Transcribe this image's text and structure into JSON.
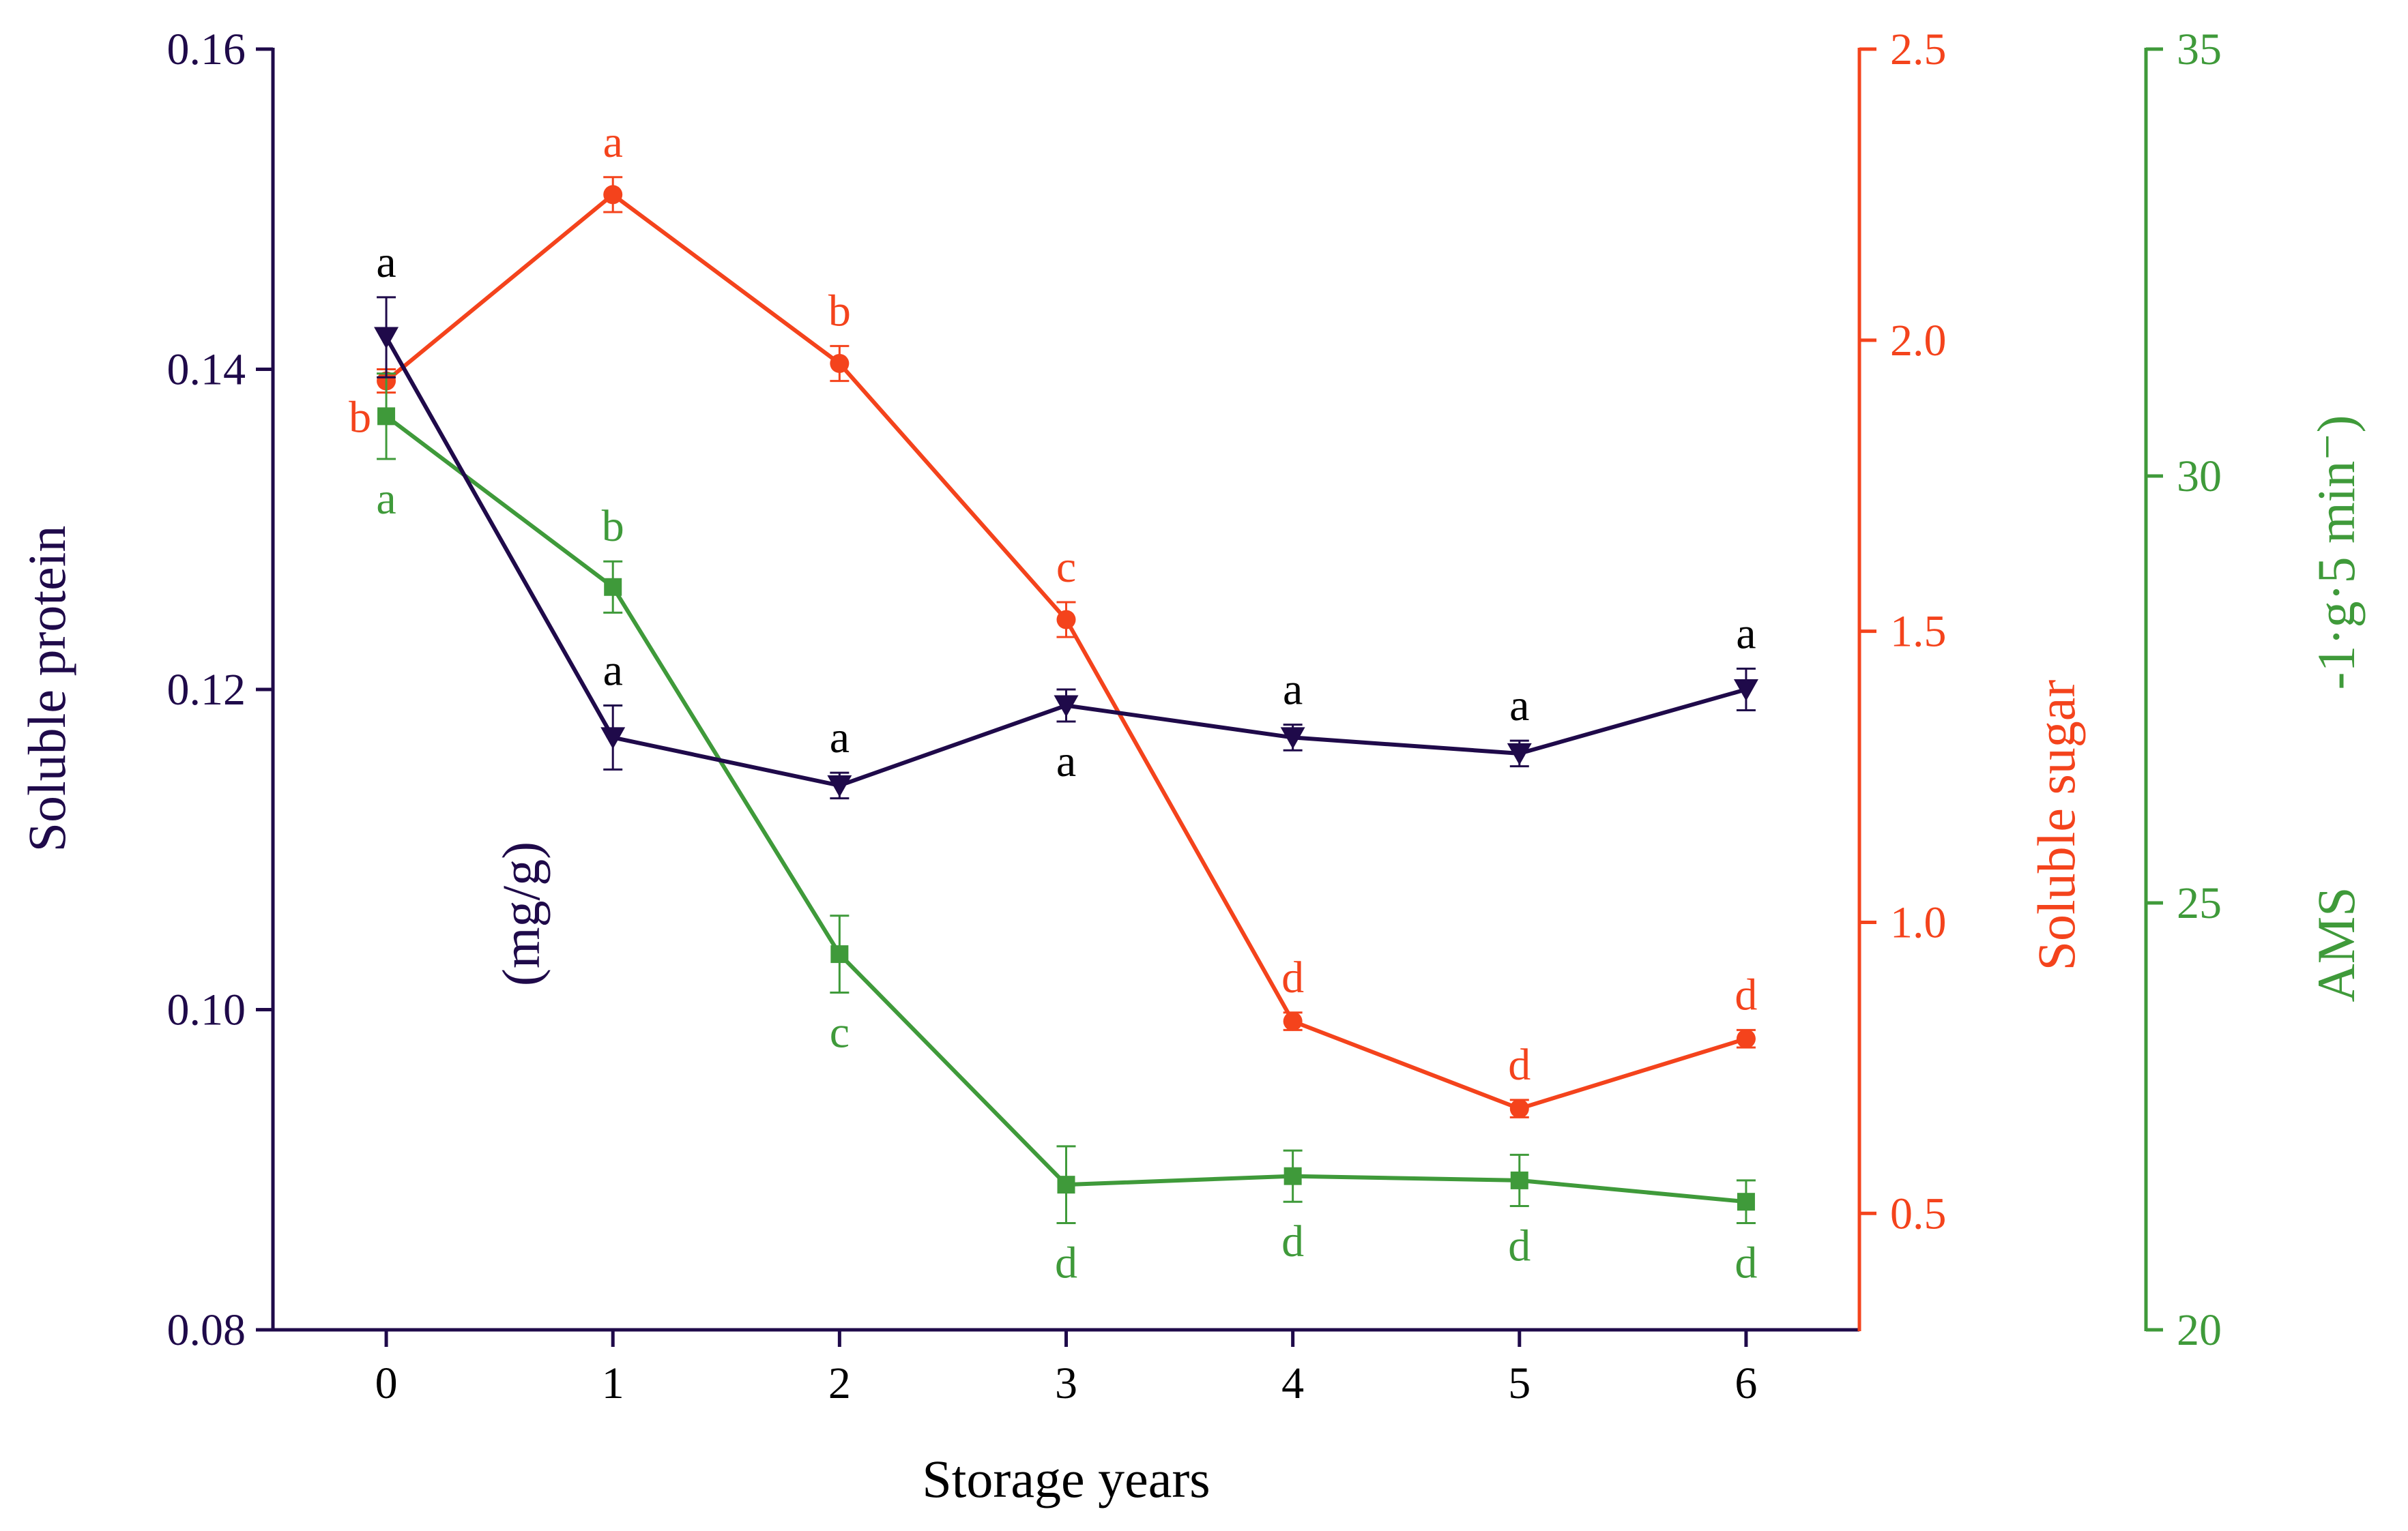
{
  "chart_data": {
    "type": "line",
    "title": "",
    "xlabel": "Storage years",
    "x": [
      0,
      1,
      2,
      3,
      4,
      5,
      6
    ],
    "xticks": [
      "0",
      "1",
      "2",
      "3",
      "4",
      "5",
      "6"
    ],
    "xlim": [
      -0.5,
      6.5
    ],
    "colors": {
      "protein": "#1f0a4a",
      "sugar": "#f4431c",
      "ams": "#3f9a3a"
    },
    "axes": {
      "left": {
        "ylabel": "Soluble protein",
        "unit_note": "(mg/g)",
        "ylim": [
          0.08,
          0.16
        ],
        "ticks": [
          "0.08",
          "0.10",
          "0.12",
          "0.14",
          "0.16"
        ]
      },
      "right1": {
        "ylabel": "Soluble sugar",
        "ylim": [
          0.3,
          2.5
        ],
        "ticks": [
          "0.5",
          "1.0",
          "1.5",
          "2.0",
          "2.5"
        ]
      },
      "right2": {
        "ylabel_main": "AMS",
        "ylabel_unit": "-1·g·5 min⁻)",
        "ylim": [
          20,
          35
        ],
        "ticks": [
          "20",
          "25",
          "30",
          "35"
        ]
      }
    },
    "series": [
      {
        "name": "Soluble protein",
        "axis": "left",
        "marker": "triangle-down",
        "color": "#1f0a4a",
        "values": [
          0.142,
          0.117,
          0.114,
          0.119,
          0.117,
          0.116,
          0.12
        ],
        "errors": [
          0.0025,
          0.002,
          0.0008,
          0.001,
          0.0008,
          0.0008,
          0.0013
        ],
        "letters": [
          "a",
          "a",
          "a",
          "a",
          "a",
          "a",
          "a"
        ],
        "letter_pos": [
          "above",
          "above",
          "above",
          "below",
          "above",
          "above",
          "above"
        ]
      },
      {
        "name": "Soluble sugar",
        "axis": "right1",
        "marker": "circle",
        "color": "#f4431c",
        "values": [
          1.93,
          2.25,
          1.96,
          1.52,
          0.83,
          0.68,
          0.8
        ],
        "errors": [
          0.02,
          0.03,
          0.03,
          0.03,
          0.015,
          0.015,
          0.015
        ],
        "letters": [
          "b",
          "a",
          "b",
          "c",
          "d",
          "d",
          "d"
        ],
        "letter_pos": [
          "left",
          "above",
          "above",
          "above",
          "above",
          "above",
          "above"
        ]
      },
      {
        "name": "AMS",
        "axis": "right2",
        "marker": "square",
        "color": "#3f9a3a",
        "values": [
          30.7,
          28.7,
          24.4,
          21.7,
          21.8,
          21.75,
          21.5
        ],
        "errors": [
          0.5,
          0.3,
          0.45,
          0.45,
          0.3,
          0.3,
          0.25
        ],
        "letters": [
          "a",
          "b",
          "c",
          "d",
          "d",
          "d",
          "d"
        ],
        "letter_pos": [
          "below",
          "above",
          "below",
          "below",
          "below",
          "below",
          "below"
        ]
      }
    ]
  }
}
